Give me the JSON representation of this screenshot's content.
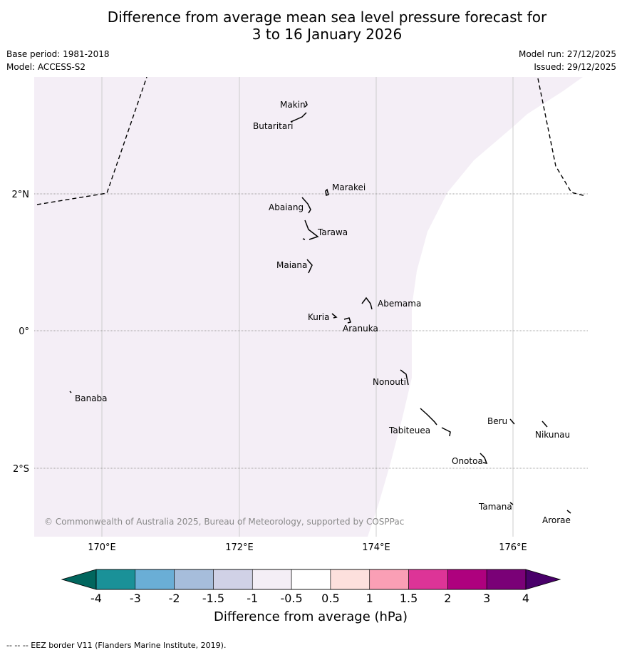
{
  "title_line1": "Difference from average mean sea level pressure forecast for",
  "title_line2": "3 to 16 January 2026",
  "meta": {
    "base_period": "Base period: 1981-2018",
    "model": "Model: ACCESS-S2",
    "model_run": "Model run: 27/12/2025",
    "issued": "Issued: 29/12/2025"
  },
  "lon_ticks": [
    "170°E",
    "172°E",
    "174°E",
    "176°E"
  ],
  "lat_ticks": [
    "2°N",
    "0°",
    "2°S"
  ],
  "places": {
    "makin": "Makin",
    "butaritari": "Butaritari",
    "marakei": "Marakei",
    "abaiang": "Abaiang",
    "tarawa": "Tarawa",
    "maiana": "Maiana",
    "abemama": "Abemama",
    "kuria": "Kuria",
    "aranuka": "Aranuka",
    "banaba": "Banaba",
    "nonouti": "Nonouti",
    "tabiteuea": "Tabiteuea",
    "beru": "Beru",
    "nikunau": "Nikunau",
    "onotoa": "Onotoa",
    "tamana": "Tamana",
    "arorae": "Arorae"
  },
  "copyright": "© Commonwealth of Australia 2025, Bureau of Meteorology, supported by COSPPac",
  "colorbar": {
    "ticks": [
      "-4",
      "-3",
      "-2",
      "-1.5",
      "-1",
      "-0.5",
      "0.5",
      "1",
      "1.5",
      "2",
      "3",
      "4"
    ],
    "colors": [
      "#1a9198",
      "#6aaed6",
      "#a6bddb",
      "#d0d1e6",
      "#f4eef6",
      "#ffffff",
      "#fde0dd",
      "#fa9fb5",
      "#dd3497",
      "#ae017e",
      "#7a0177"
    ],
    "under_color": "#01665e",
    "over_color": "#49006a",
    "label": "Difference from average (hPa)"
  },
  "colors": {
    "shade": "#f4eef6",
    "grid": "#cccccc"
  },
  "footer": "--  --  -- EEZ border V11 (Flanders Marine Institute, 2019)."
}
